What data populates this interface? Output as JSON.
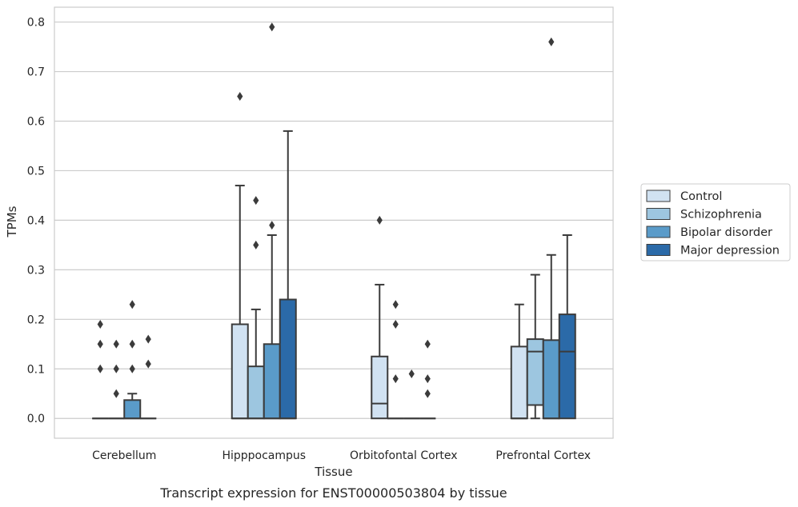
{
  "chart_data": {
    "type": "box",
    "title": "",
    "caption": "Transcript expression for ENST00000503804 by tissue",
    "xlabel": "Tissue",
    "ylabel": "TPMs",
    "ylim": [
      -0.04,
      0.83
    ],
    "yticks": [
      0.0,
      0.1,
      0.2,
      0.3,
      0.4,
      0.5,
      0.6,
      0.7,
      0.8
    ],
    "ytick_labels": [
      "0.0",
      "0.1",
      "0.2",
      "0.3",
      "0.4",
      "0.5",
      "0.6",
      "0.7",
      "0.8"
    ],
    "grid": "horizontal",
    "legend_position": "right",
    "categories": [
      "Cerebellum",
      "Hipppocampus",
      "Orbitofontal Cortex",
      "Prefrontal Cortex"
    ],
    "series": [
      {
        "name": "Control",
        "color": "#d1e2f2",
        "boxes": [
          {
            "q1": 0,
            "median": 0,
            "q3": 0,
            "whisker_low": 0,
            "whisker_high": 0,
            "outliers": [
              0.19,
              0.15,
              0.1
            ]
          },
          {
            "q1": 0,
            "median": 0,
            "q3": 0.19,
            "whisker_low": 0,
            "whisker_high": 0.47,
            "outliers": [
              0.65
            ]
          },
          {
            "q1": 0,
            "median": 0.03,
            "q3": 0.125,
            "whisker_low": 0,
            "whisker_high": 0.27,
            "outliers": [
              0.4
            ]
          },
          {
            "q1": 0,
            "median": 0,
            "q3": 0.145,
            "whisker_low": 0,
            "whisker_high": 0.23,
            "outliers": []
          }
        ]
      },
      {
        "name": "Schizophrenia",
        "color": "#9dc6e0",
        "boxes": [
          {
            "q1": 0,
            "median": 0,
            "q3": 0,
            "whisker_low": 0,
            "whisker_high": 0,
            "outliers": [
              0.15,
              0.1,
              0.05
            ]
          },
          {
            "q1": 0,
            "median": 0,
            "q3": 0.105,
            "whisker_low": 0,
            "whisker_high": 0.22,
            "outliers": [
              0.44,
              0.35
            ]
          },
          {
            "q1": 0,
            "median": 0,
            "q3": 0,
            "whisker_low": 0,
            "whisker_high": 0,
            "outliers": [
              0.23,
              0.19,
              0.08
            ]
          },
          {
            "q1": 0.027,
            "median": 0.135,
            "q3": 0.16,
            "whisker_low": 0,
            "whisker_high": 0.29,
            "outliers": []
          }
        ]
      },
      {
        "name": "Bipolar disorder",
        "color": "#5a9bc9",
        "boxes": [
          {
            "q1": 0,
            "median": 0,
            "q3": 0.037,
            "whisker_low": 0,
            "whisker_high": 0.05,
            "outliers": [
              0.23,
              0.15,
              0.1
            ]
          },
          {
            "q1": 0,
            "median": 0,
            "q3": 0.15,
            "whisker_low": 0,
            "whisker_high": 0.37,
            "outliers": [
              0.79,
              0.39
            ]
          },
          {
            "q1": 0,
            "median": 0,
            "q3": 0,
            "whisker_low": 0,
            "whisker_high": 0,
            "outliers": [
              0.09
            ]
          },
          {
            "q1": 0,
            "median": 0,
            "q3": 0.158,
            "whisker_low": 0,
            "whisker_high": 0.33,
            "outliers": [
              0.76
            ]
          }
        ]
      },
      {
        "name": "Major depression",
        "color": "#2b6aa8",
        "boxes": [
          {
            "q1": 0,
            "median": 0,
            "q3": 0,
            "whisker_low": 0,
            "whisker_high": 0,
            "outliers": [
              0.16,
              0.11
            ]
          },
          {
            "q1": 0,
            "median": 0,
            "q3": 0.24,
            "whisker_low": 0,
            "whisker_high": 0.58,
            "outliers": []
          },
          {
            "q1": 0,
            "median": 0,
            "q3": 0,
            "whisker_low": 0,
            "whisker_high": 0,
            "outliers": [
              0.15,
              0.08,
              0.05
            ]
          },
          {
            "q1": 0,
            "median": 0.135,
            "q3": 0.21,
            "whisker_low": 0,
            "whisker_high": 0.37,
            "outliers": []
          }
        ]
      }
    ],
    "colors": {
      "grid": "#cccccc",
      "frame": "#cccccc",
      "edge": "#3b3b3b",
      "text": "#262626"
    }
  }
}
